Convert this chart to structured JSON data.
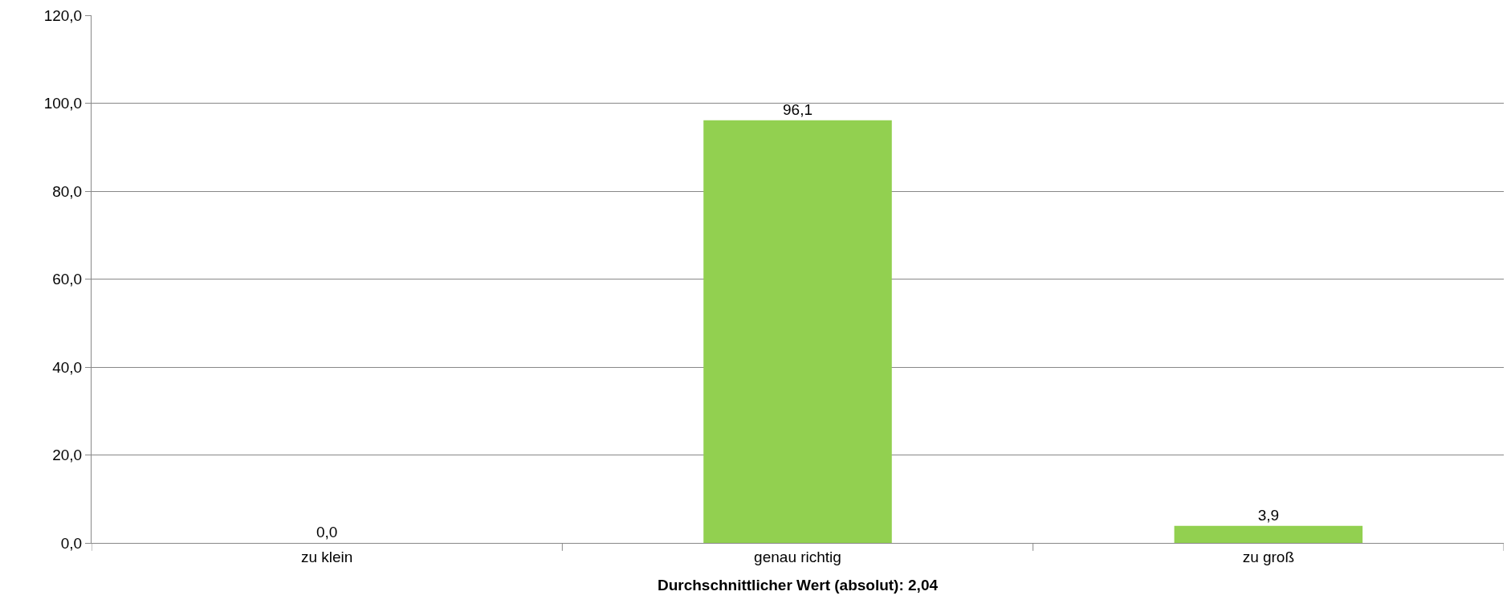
{
  "chart_data": {
    "type": "bar",
    "xlabel": "Durchschnittlicher Wert (absolut): 2,04",
    "categories": [
      "zu klein",
      "genau richtig",
      "zu groß"
    ],
    "values": [
      0.0,
      96.1,
      3.9
    ],
    "value_labels": [
      "0,0",
      "96,1",
      "3,9"
    ],
    "color": "#92d050",
    "ylim": [
      0,
      120
    ],
    "yticks": [
      {
        "value": 0,
        "label": "0,0"
      },
      {
        "value": 20,
        "label": "20,0"
      },
      {
        "value": 40,
        "label": "40,0"
      },
      {
        "value": 60,
        "label": "60,0"
      },
      {
        "value": 80,
        "label": "80,0"
      },
      {
        "value": 100,
        "label": "100,0"
      },
      {
        "value": 120,
        "label": "120,0"
      }
    ],
    "grid": "y",
    "legend": false
  }
}
